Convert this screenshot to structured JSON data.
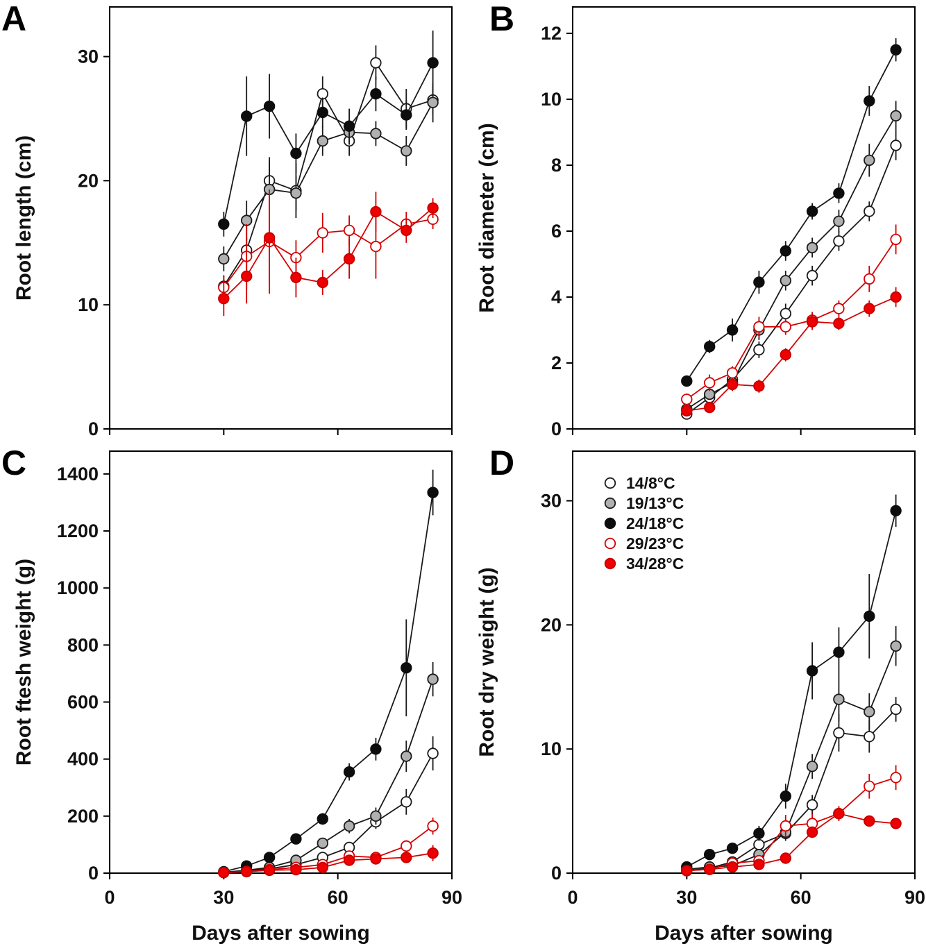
{
  "figure": {
    "x_axis_title": "Days after sowing",
    "panel_letters": [
      "A",
      "B",
      "C",
      "D"
    ]
  },
  "styles": {
    "series": [
      {
        "name": "14/8°C",
        "fill": "#ffffff",
        "stroke": "#1a1a1a",
        "line": "#1a1a1a"
      },
      {
        "name": "19/13°C",
        "fill": "#b0b0b0",
        "stroke": "#1a1a1a",
        "line": "#1a1a1a"
      },
      {
        "name": "24/18°C",
        "fill": "#0d0d0d",
        "stroke": "#0d0d0d",
        "line": "#1a1a1a"
      },
      {
        "name": "29/23°C",
        "fill": "#ffffff",
        "stroke": "#d40000",
        "line": "#d40000"
      },
      {
        "name": "34/28°C",
        "fill": "#ee0000",
        "stroke": "#c40000",
        "line": "#d40000"
      }
    ]
  },
  "chart_data": [
    {
      "type": "line",
      "panel_label": "A",
      "ylabel": "Root length (cm)",
      "xlabel": "",
      "xlim": [
        0,
        90
      ],
      "ylim": [
        0,
        34
      ],
      "xticks": [
        0,
        30,
        60,
        90
      ],
      "yticks": [
        0,
        10,
        20,
        30
      ],
      "show_x_tick_labels": false,
      "x": [
        30,
        36,
        42,
        49,
        56,
        63,
        70,
        78,
        85
      ],
      "series": [
        {
          "name": "14/8°C",
          "values": [
            11.5,
            14.4,
            20.0,
            19.2,
            27.0,
            23.2,
            29.5,
            25.8,
            26.5
          ],
          "errors": [
            0.8,
            1.0,
            1.6,
            2.2,
            1.4,
            1.2,
            1.4,
            1.6,
            1.2
          ]
        },
        {
          "name": "19/13°C",
          "values": [
            13.7,
            16.8,
            19.3,
            19.0,
            23.2,
            23.9,
            23.8,
            22.4,
            26.3
          ],
          "errors": [
            1.0,
            1.6,
            2.6,
            1.4,
            1.2,
            1.0,
            1.0,
            1.2,
            1.6
          ]
        },
        {
          "name": "24/18°C",
          "values": [
            16.5,
            25.2,
            26.0,
            22.2,
            25.5,
            24.4,
            27.0,
            25.3,
            29.5
          ],
          "errors": [
            1.0,
            3.2,
            2.6,
            1.6,
            1.2,
            1.4,
            1.4,
            1.2,
            2.6
          ]
        },
        {
          "name": "29/23°C",
          "values": [
            11.4,
            13.9,
            15.1,
            13.8,
            15.8,
            16.0,
            14.7,
            16.5,
            16.9
          ],
          "errors": [
            1.0,
            2.6,
            4.2,
            1.4,
            1.6,
            1.2,
            2.6,
            1.0,
            0.8
          ]
        },
        {
          "name": "34/28°C",
          "values": [
            10.5,
            12.3,
            15.4,
            12.2,
            11.8,
            13.7,
            17.5,
            16.0,
            17.8
          ],
          "errors": [
            1.4,
            2.2,
            3.6,
            1.6,
            1.0,
            1.6,
            1.6,
            1.0,
            0.8
          ]
        }
      ]
    },
    {
      "type": "line",
      "panel_label": "B",
      "ylabel": "Root diameter (cm)",
      "xlabel": "",
      "xlim": [
        0,
        90
      ],
      "ylim": [
        0,
        12.8
      ],
      "xticks": [
        0,
        30,
        60,
        90
      ],
      "yticks": [
        0,
        2,
        4,
        6,
        8,
        10,
        12
      ],
      "show_x_tick_labels": false,
      "x": [
        30,
        36,
        42,
        49,
        56,
        63,
        70,
        78,
        85
      ],
      "series": [
        {
          "name": "14/8°C",
          "values": [
            0.45,
            0.95,
            1.5,
            2.4,
            3.5,
            4.65,
            5.7,
            6.6,
            8.6
          ],
          "errors": [
            0.1,
            0.15,
            0.2,
            0.25,
            0.3,
            0.3,
            0.3,
            0.3,
            0.45
          ]
        },
        {
          "name": "19/13°C",
          "values": [
            0.6,
            1.05,
            1.4,
            3.0,
            4.5,
            5.5,
            6.3,
            8.15,
            9.5
          ],
          "errors": [
            0.1,
            0.15,
            0.2,
            0.3,
            0.3,
            0.3,
            0.35,
            0.5,
            0.45
          ]
        },
        {
          "name": "24/18°C",
          "values": [
            1.45,
            2.5,
            3.0,
            4.45,
            5.4,
            6.6,
            7.15,
            9.95,
            11.5
          ],
          "errors": [
            0.15,
            0.2,
            0.35,
            0.35,
            0.3,
            0.25,
            0.3,
            0.45,
            0.35
          ]
        },
        {
          "name": "29/23°C",
          "values": [
            0.9,
            1.4,
            1.7,
            3.1,
            3.1,
            3.3,
            3.65,
            4.55,
            5.75
          ],
          "errors": [
            0.15,
            0.25,
            0.2,
            0.3,
            0.25,
            0.25,
            0.25,
            0.4,
            0.45
          ]
        },
        {
          "name": "34/28°C",
          "values": [
            0.55,
            0.65,
            1.35,
            1.3,
            2.25,
            3.25,
            3.2,
            3.65,
            4.0
          ],
          "errors": [
            0.1,
            0.1,
            0.2,
            0.2,
            0.2,
            0.25,
            0.2,
            0.25,
            0.3
          ]
        }
      ]
    },
    {
      "type": "line",
      "panel_label": "C",
      "ylabel": "Root ftesh weight (g)",
      "xlabel": "Days after sowing",
      "xlim": [
        0,
        90
      ],
      "ylim": [
        0,
        1480
      ],
      "xticks": [
        0,
        30,
        60,
        90
      ],
      "yticks": [
        0,
        200,
        400,
        600,
        800,
        1000,
        1200,
        1400
      ],
      "show_x_tick_labels": true,
      "x": [
        30,
        36,
        42,
        49,
        56,
        63,
        70,
        78,
        85
      ],
      "series": [
        {
          "name": "14/8°C",
          "values": [
            3,
            8,
            15,
            30,
            55,
            90,
            180,
            250,
            420
          ],
          "errors": [
            2,
            3,
            5,
            8,
            12,
            15,
            25,
            45,
            60
          ]
        },
        {
          "name": "19/13°C",
          "values": [
            3,
            10,
            20,
            45,
            105,
            165,
            200,
            410,
            680
          ],
          "errors": [
            2,
            4,
            6,
            10,
            18,
            25,
            30,
            55,
            60
          ]
        },
        {
          "name": "24/18°C",
          "values": [
            5,
            25,
            55,
            120,
            190,
            355,
            435,
            720,
            1335
          ],
          "errors": [
            3,
            8,
            12,
            15,
            20,
            30,
            40,
            170,
            80
          ]
        },
        {
          "name": "29/23°C",
          "values": [
            2,
            6,
            12,
            20,
            30,
            60,
            55,
            95,
            165
          ],
          "errors": [
            1,
            2,
            4,
            6,
            8,
            12,
            14,
            20,
            30
          ]
        },
        {
          "name": "34/28°C",
          "values": [
            2,
            5,
            10,
            12,
            20,
            45,
            50,
            55,
            70
          ],
          "errors": [
            1,
            2,
            3,
            4,
            6,
            10,
            12,
            15,
            28
          ]
        }
      ]
    },
    {
      "type": "line",
      "panel_label": "D",
      "ylabel": "Root dry weight (g)",
      "xlabel": "Days after sowing",
      "xlim": [
        0,
        90
      ],
      "ylim": [
        0,
        34
      ],
      "xticks": [
        0,
        30,
        60,
        90
      ],
      "yticks": [
        0,
        10,
        20,
        30
      ],
      "show_x_tick_labels": true,
      "x": [
        30,
        36,
        42,
        49,
        56,
        63,
        70,
        78,
        85
      ],
      "legend": {
        "position": "top-left",
        "items": [
          "14/8°C",
          "19/13°C",
          "24/18°C",
          "29/23°C",
          "34/28°C"
        ]
      },
      "series": [
        {
          "name": "14/8°C",
          "values": [
            0.2,
            0.4,
            0.9,
            2.3,
            3.2,
            5.5,
            11.3,
            11.0,
            13.2
          ],
          "errors": [
            0.1,
            0.1,
            0.2,
            0.5,
            0.6,
            0.8,
            1.5,
            1.3,
            1.0
          ]
        },
        {
          "name": "19/13°C",
          "values": [
            0.3,
            0.5,
            0.6,
            1.5,
            3.3,
            8.6,
            14.0,
            13.0,
            18.3
          ],
          "errors": [
            0.1,
            0.1,
            0.2,
            0.4,
            0.6,
            1.0,
            1.8,
            1.5,
            1.6
          ]
        },
        {
          "name": "24/18°C",
          "values": [
            0.5,
            1.5,
            2.0,
            3.2,
            6.2,
            16.3,
            17.8,
            20.7,
            29.2
          ],
          "errors": [
            0.1,
            0.3,
            0.4,
            0.6,
            1.0,
            2.3,
            2.0,
            3.4,
            1.3
          ]
        },
        {
          "name": "29/23°C",
          "values": [
            0.2,
            0.3,
            0.8,
            1.0,
            3.8,
            4.0,
            4.8,
            7.0,
            7.7
          ],
          "errors": [
            0.1,
            0.1,
            0.2,
            0.3,
            0.9,
            0.8,
            0.6,
            1.0,
            1.0
          ]
        },
        {
          "name": "34/28°C",
          "values": [
            0.2,
            0.3,
            0.5,
            0.7,
            1.2,
            3.3,
            4.8,
            4.2,
            4.0
          ],
          "errors": [
            0.1,
            0.1,
            0.1,
            0.2,
            0.3,
            0.4,
            0.5,
            0.4,
            0.4
          ]
        }
      ]
    }
  ]
}
